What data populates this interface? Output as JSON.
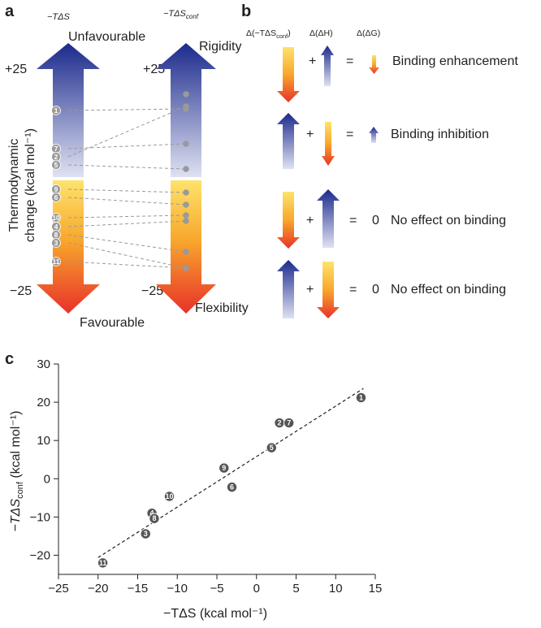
{
  "panels": {
    "a": {
      "label": "a",
      "left_header": "−TΔS",
      "right_header_main": "−TΔS",
      "right_header_sub": "conf",
      "unfavourable": "Unfavourable",
      "favourable": "Favourable",
      "rigidity": "Rigidity",
      "flexibility": "Flexibility",
      "ylabel_line1": "Thermodynamic",
      "ylabel_line2": "change (kcal mol⁻¹)",
      "top_value_left": "+25",
      "bottom_value_left": "−25",
      "top_value_right": "+25",
      "bottom_value_right": "−25",
      "left_markers": [
        "1",
        "7",
        "2",
        "5",
        "9",
        "6",
        "10",
        "4",
        "8",
        "3",
        "11"
      ]
    },
    "b": {
      "label": "b",
      "col1": "Δ(−TΔS",
      "col1_sub": "conf",
      "col1_close": ")",
      "col2": "Δ(ΔH)",
      "col3": "Δ(ΔG)",
      "rows": [
        {
          "plus": "+",
          "equals": "=",
          "zero": "",
          "result": "Binding enhancement"
        },
        {
          "plus": "+",
          "equals": "=",
          "zero": "",
          "result": "Binding inhibition"
        },
        {
          "plus": "+",
          "equals": "=",
          "zero": "0",
          "result": "No effect on binding"
        },
        {
          "plus": "+",
          "equals": "=",
          "zero": "0",
          "result": "No effect on binding"
        }
      ]
    },
    "c": {
      "label": "c",
      "xlabel": "−TΔS (kcal mol⁻¹)",
      "ylabel_main": "−TΔS",
      "ylabel_sub": "conf",
      "ylabel_tail": " (kcal mol⁻¹)"
    }
  },
  "colors": {
    "blue_dark": "#1c2a8c",
    "blue_light": "#d8dcef",
    "yellow": "#fce26a",
    "orange": "#f7a02a",
    "red": "#e8312a",
    "marker": "#9a9a9a",
    "scatter_marker": "#555555"
  },
  "chart_data": {
    "type": "scatter",
    "xlim": [
      -25,
      15
    ],
    "ylim": [
      -25,
      30
    ],
    "xticks": [
      -25,
      -20,
      -15,
      -10,
      -5,
      0,
      5,
      10,
      15
    ],
    "yticks": [
      -20,
      -10,
      0,
      10,
      20,
      30
    ],
    "points": [
      {
        "label": "1",
        "x": 13.2,
        "y": 21.2
      },
      {
        "label": "2",
        "x": 2.9,
        "y": 14.6
      },
      {
        "label": "7",
        "x": 4.1,
        "y": 14.6
      },
      {
        "label": "5",
        "x": 1.9,
        "y": 8.1
      },
      {
        "label": "9",
        "x": -4.1,
        "y": 2.8
      },
      {
        "label": "6",
        "x": -3.1,
        "y": -2.2
      },
      {
        "label": "10",
        "x": -11.0,
        "y": -4.6
      },
      {
        "label": "4",
        "x": -13.2,
        "y": -9.0
      },
      {
        "label": "8",
        "x": -12.9,
        "y": -10.4
      },
      {
        "label": "3",
        "x": -14.0,
        "y": -14.4
      },
      {
        "label": "11",
        "x": -19.4,
        "y": -22.0
      }
    ],
    "fit_line": {
      "x": [
        -20,
        13.5
      ],
      "y": [
        -20.6,
        23.6
      ]
    }
  }
}
